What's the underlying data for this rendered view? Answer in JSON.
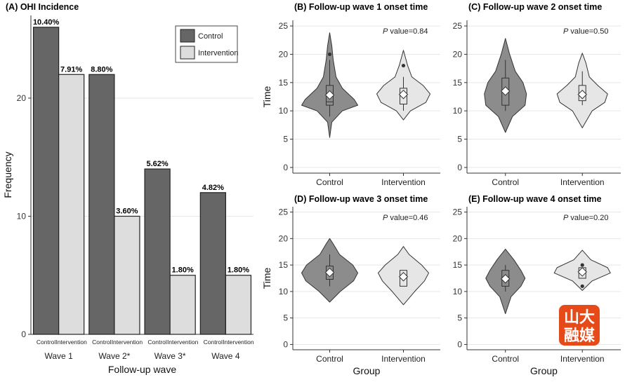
{
  "chart_data": [
    {
      "id": "A",
      "type": "bar",
      "title": "(A) OHI Incidence",
      "xlabel": "Follow-up wave",
      "ylabel": "Frequency",
      "ylim": [
        0,
        27
      ],
      "yticks": [
        0,
        10,
        20
      ],
      "categories": [
        "Wave 1",
        "Wave 2*",
        "Wave 3*",
        "Wave 4"
      ],
      "sublabels": [
        "Control",
        "Intervention"
      ],
      "legend": [
        "Control",
        "Intervention"
      ],
      "legend_position": "top-right",
      "colors": {
        "control": "#666666",
        "intervention": "#dddddd"
      },
      "series": [
        {
          "name": "Control",
          "values": [
            26,
            22,
            14,
            12
          ],
          "labels": [
            "10.40%",
            "8.80%",
            "5.62%",
            "4.82%"
          ]
        },
        {
          "name": "Intervention",
          "values": [
            22,
            10,
            5,
            5
          ],
          "labels": [
            "7.91%",
            "3.60%",
            "1.80%",
            "1.80%"
          ]
        }
      ]
    },
    {
      "id": "B",
      "type": "violin",
      "title": "(B) Follow-up wave 1 onset time",
      "ylabel": "Time",
      "xlabel": "",
      "ylim": [
        -1,
        26
      ],
      "yticks": [
        0,
        5,
        10,
        15,
        20,
        25
      ],
      "categories": [
        "Control",
        "Intervention"
      ],
      "p_label": "P",
      "p_text": " value=0.84",
      "groups": [
        {
          "name": "Control",
          "color": "#8c8c8c",
          "q1": 11,
          "median": 11.6,
          "q3": 14.5,
          "whisker_low": 9,
          "whisker_high": 19,
          "mean": 12.8,
          "outliers": [
            20
          ],
          "profile": [
            [
              5.3,
              0
            ],
            [
              8,
              3
            ],
            [
              10,
              18
            ],
            [
              11,
              40
            ],
            [
              12,
              35
            ],
            [
              14,
              18
            ],
            [
              16,
              9
            ],
            [
              19,
              5
            ],
            [
              21.5,
              3
            ],
            [
              23.8,
              0
            ]
          ]
        },
        {
          "name": "Intervention",
          "color": "#e6e6e6",
          "q1": 11.2,
          "median": 13,
          "q3": 14,
          "whisker_low": 10,
          "whisker_high": 16,
          "mean": 12.9,
          "outliers": [
            18
          ],
          "profile": [
            [
              8.4,
              0
            ],
            [
              10,
              10
            ],
            [
              11.5,
              32
            ],
            [
              13,
              38
            ],
            [
              14.5,
              28
            ],
            [
              16,
              12
            ],
            [
              18,
              6
            ],
            [
              20.7,
              0
            ]
          ]
        }
      ]
    },
    {
      "id": "C",
      "type": "violin",
      "title": "(C) Follow-up wave 2 onset time",
      "ylabel": "",
      "xlabel": "",
      "ylim": [
        -1,
        26
      ],
      "yticks": [
        0,
        5,
        10,
        15,
        20,
        25
      ],
      "categories": [
        "Control",
        "Intervention"
      ],
      "p_label": "P",
      "p_text": " value=0.50",
      "groups": [
        {
          "name": "Control",
          "color": "#8c8c8c",
          "q1": 11,
          "median": 13.5,
          "q3": 15.8,
          "whisker_low": 10,
          "whisker_high": 19,
          "mean": 13.5,
          "outliers": [],
          "profile": [
            [
              6.2,
              0
            ],
            [
              9,
              10
            ],
            [
              11,
              28
            ],
            [
              13,
              30
            ],
            [
              15,
              25
            ],
            [
              17,
              14
            ],
            [
              20,
              6
            ],
            [
              22.8,
              0
            ]
          ]
        },
        {
          "name": "Intervention",
          "color": "#e6e6e6",
          "q1": 11.8,
          "median": 12.8,
          "q3": 14.5,
          "whisker_low": 11,
          "whisker_high": 17,
          "mean": 12.9,
          "outliers": [],
          "profile": [
            [
              7,
              0
            ],
            [
              10,
              14
            ],
            [
              11.5,
              32
            ],
            [
              13,
              36
            ],
            [
              14.5,
              22
            ],
            [
              16,
              10
            ],
            [
              18.5,
              5
            ],
            [
              20.2,
              0
            ]
          ]
        }
      ]
    },
    {
      "id": "D",
      "type": "violin",
      "title": "(D) Follow-up wave 3 onset time",
      "ylabel": "Time",
      "xlabel": "Group",
      "ylim": [
        -1,
        26
      ],
      "yticks": [
        0,
        5,
        10,
        15,
        20,
        25
      ],
      "categories": [
        "Control",
        "Intervention"
      ],
      "p_label": "P",
      "p_text": " value=0.46",
      "groups": [
        {
          "name": "Control",
          "color": "#8c8c8c",
          "q1": 12.3,
          "median": 13.5,
          "q3": 14.8,
          "whisker_low": 11,
          "whisker_high": 17,
          "mean": 13.6,
          "outliers": [],
          "profile": [
            [
              8,
              0
            ],
            [
              10,
              15
            ],
            [
              12,
              34
            ],
            [
              13.5,
              40
            ],
            [
              15,
              33
            ],
            [
              17,
              14
            ],
            [
              19,
              5
            ],
            [
              20,
              0
            ]
          ]
        },
        {
          "name": "Intervention",
          "color": "#e6e6e6",
          "q1": 11,
          "median": 12.8,
          "q3": 14,
          "whisker_low": 11,
          "whisker_high": 14,
          "mean": 12.8,
          "outliers": [],
          "profile": [
            [
              7.5,
              0
            ],
            [
              10,
              16
            ],
            [
              12,
              30
            ],
            [
              13.5,
              36
            ],
            [
              15,
              26
            ],
            [
              17,
              8
            ],
            [
              18.5,
              0
            ]
          ]
        }
      ]
    },
    {
      "id": "E",
      "type": "violin",
      "title": "(E) Follow-up wave 4 onset time",
      "ylabel": "",
      "xlabel": "Group",
      "ylim": [
        -1,
        26
      ],
      "yticks": [
        0,
        5,
        10,
        15,
        20,
        25
      ],
      "categories": [
        "Control",
        "Intervention"
      ],
      "p_label": "P",
      "p_text": " value=0.20",
      "groups": [
        {
          "name": "Control",
          "color": "#8c8c8c",
          "q1": 11,
          "median": 12.5,
          "q3": 14,
          "whisker_low": 10,
          "whisker_high": 15,
          "mean": 12.4,
          "outliers": [],
          "profile": [
            [
              5.8,
              0
            ],
            [
              9,
              8
            ],
            [
              11,
              22
            ],
            [
              12.5,
              28
            ],
            [
              14,
              22
            ],
            [
              16,
              12
            ],
            [
              18,
              0
            ]
          ]
        },
        {
          "name": "Intervention",
          "color": "#e6e6e6",
          "q1": 12.5,
          "median": 13.8,
          "q3": 14.5,
          "whisker_low": 12.5,
          "whisker_high": 14.5,
          "mean": 13.7,
          "outliers": [
            15,
            11
          ],
          "profile": [
            [
              10.2,
              0
            ],
            [
              12,
              14
            ],
            [
              13.5,
              40
            ],
            [
              14.5,
              36
            ],
            [
              16,
              12
            ],
            [
              17.8,
              0
            ]
          ]
        }
      ]
    }
  ],
  "watermark": {
    "line1": "山大",
    "line2": "融媒",
    "color": "#e64a19"
  }
}
